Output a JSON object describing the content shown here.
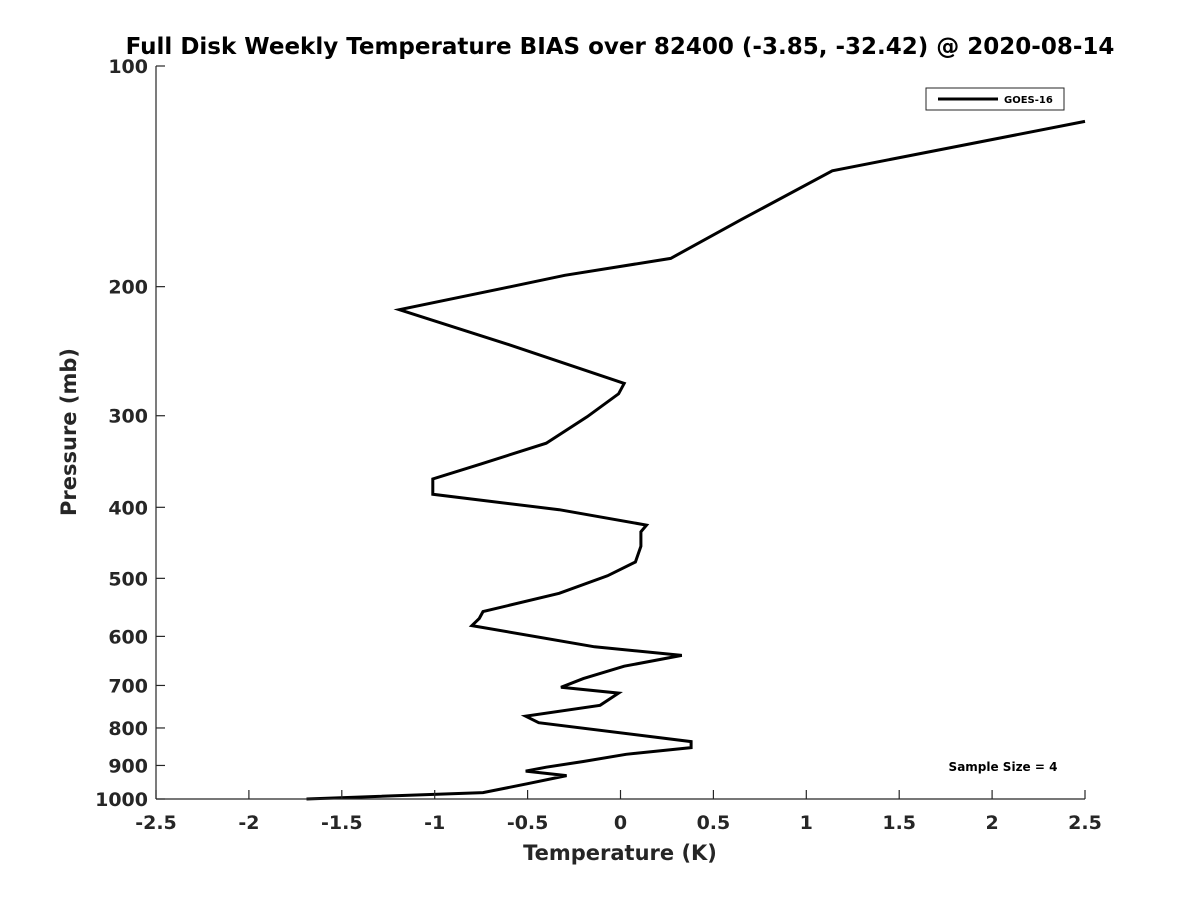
{
  "chart_data": {
    "type": "line",
    "title": "Full Disk Weekly Temperature BIAS over 82400 (-3.85, -32.42) @ 2020-08-14",
    "xlabel": "Temperature (K)",
    "ylabel": "Pressure (mb)",
    "xlim": [
      -2.5,
      2.5
    ],
    "ylim": [
      100,
      1000
    ],
    "y_scale": "log",
    "y_reversed": true,
    "x_ticks": [
      "-2.5",
      "-2",
      "-1.5",
      "-1",
      "-0.5",
      "0",
      "0.5",
      "1",
      "1.5",
      "2",
      "2.5"
    ],
    "x_tick_values": [
      -2.5,
      -2,
      -1.5,
      -1,
      -0.5,
      0,
      0.5,
      1,
      1.5,
      2,
      2.5
    ],
    "y_ticks": [
      "100",
      "200",
      "300",
      "400",
      "500",
      "600",
      "700",
      "800",
      "900",
      "1000"
    ],
    "y_tick_values": [
      100,
      200,
      300,
      400,
      500,
      600,
      700,
      800,
      900,
      1000
    ],
    "grid": false,
    "legend": {
      "position": "top-right",
      "entries": [
        "GOES-16"
      ]
    },
    "annotation": "Sample Size = 4",
    "color": "#000000",
    "series": [
      {
        "name": "GOES-16",
        "points": [
          [
            2.5,
            119
          ],
          [
            1.14,
            139
          ],
          [
            0.65,
            162
          ],
          [
            0.27,
            183
          ],
          [
            -0.3,
            193
          ],
          [
            -0.63,
            201
          ],
          [
            -1.19,
            215
          ],
          [
            -0.6,
            240
          ],
          [
            0.02,
            271
          ],
          [
            -0.01,
            280
          ],
          [
            -0.18,
            301
          ],
          [
            -0.4,
            327
          ],
          [
            -0.75,
            349
          ],
          [
            -1.01,
            366
          ],
          [
            -1.01,
            384
          ],
          [
            -0.33,
            403
          ],
          [
            0.14,
            423
          ],
          [
            0.11,
            432
          ],
          [
            0.11,
            452
          ],
          [
            0.08,
            475
          ],
          [
            -0.07,
            496
          ],
          [
            -0.33,
            524
          ],
          [
            -0.74,
            555
          ],
          [
            -0.76,
            567
          ],
          [
            -0.8,
            580
          ],
          [
            -0.14,
            620
          ],
          [
            0.33,
            637
          ],
          [
            0.02,
            659
          ],
          [
            -0.2,
            685
          ],
          [
            -0.32,
            704
          ],
          [
            -0.01,
            717
          ],
          [
            -0.11,
            745
          ],
          [
            -0.51,
            771
          ],
          [
            -0.44,
            787
          ],
          [
            0.38,
            835
          ],
          [
            0.38,
            851
          ],
          [
            0.03,
            869
          ],
          [
            -0.2,
            889
          ],
          [
            -0.4,
            905
          ],
          [
            -0.51,
            916
          ],
          [
            -0.29,
            929
          ],
          [
            -0.5,
            953
          ],
          [
            -0.74,
            980
          ],
          [
            -1.69,
            1000
          ]
        ]
      }
    ]
  }
}
